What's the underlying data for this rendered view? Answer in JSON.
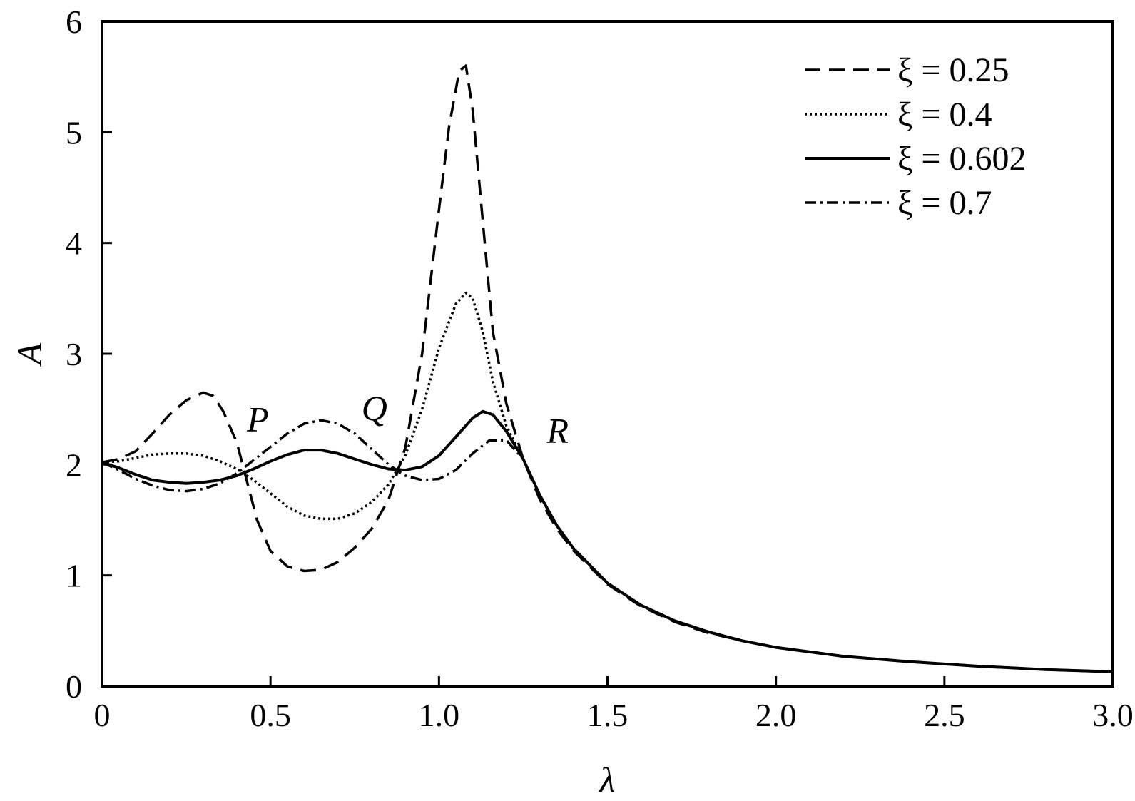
{
  "chart_data": {
    "type": "line",
    "xlabel": "λ",
    "ylabel": "A",
    "xlim": [
      0,
      3.0
    ],
    "ylim": [
      0,
      6
    ],
    "xticks": [
      {
        "value": 0,
        "label": "0"
      },
      {
        "value": 0.5,
        "label": "0.5"
      },
      {
        "value": 1.0,
        "label": "1.0"
      },
      {
        "value": 1.5,
        "label": "1.5"
      },
      {
        "value": 2.0,
        "label": "2.0"
      },
      {
        "value": 2.5,
        "label": "2.5"
      },
      {
        "value": 3.0,
        "label": "3.0"
      }
    ],
    "yticks": [
      {
        "value": 0,
        "label": "0"
      },
      {
        "value": 1,
        "label": "1"
      },
      {
        "value": 2,
        "label": "2"
      },
      {
        "value": 3,
        "label": "3"
      },
      {
        "value": 4,
        "label": "4"
      },
      {
        "value": 5,
        "label": "5"
      },
      {
        "value": 6,
        "label": "6"
      }
    ],
    "grid": false,
    "legend_position": "top-right",
    "annotations": [
      {
        "text": "P",
        "x": 0.43,
        "y": 2.3
      },
      {
        "text": "Q",
        "x": 0.77,
        "y": 2.4
      },
      {
        "text": "R",
        "x": 1.32,
        "y": 2.2
      }
    ],
    "series": [
      {
        "name": "ξ = 0.25",
        "style": "dashed",
        "color": "#000000",
        "x": [
          0,
          0.05,
          0.1,
          0.15,
          0.2,
          0.25,
          0.3,
          0.33,
          0.36,
          0.4,
          0.43,
          0.46,
          0.5,
          0.55,
          0.6,
          0.65,
          0.7,
          0.75,
          0.8,
          0.85,
          0.9,
          0.95,
          1.0,
          1.03,
          1.06,
          1.08,
          1.1,
          1.13,
          1.16,
          1.2,
          1.25,
          1.3,
          1.35,
          1.4,
          1.5,
          1.6,
          1.7,
          1.8,
          1.9,
          2.0,
          2.2,
          2.4,
          2.6,
          2.8,
          3.0
        ],
        "y": [
          2.02,
          2.05,
          2.12,
          2.28,
          2.45,
          2.58,
          2.65,
          2.62,
          2.48,
          2.2,
          1.85,
          1.5,
          1.22,
          1.08,
          1.04,
          1.05,
          1.12,
          1.25,
          1.42,
          1.68,
          2.15,
          3.0,
          4.3,
          5.05,
          5.55,
          5.6,
          5.2,
          4.2,
          3.2,
          2.55,
          2.05,
          1.68,
          1.42,
          1.22,
          0.92,
          0.72,
          0.58,
          0.48,
          0.41,
          0.35,
          0.27,
          0.22,
          0.18,
          0.15,
          0.13
        ]
      },
      {
        "name": "ξ = 0.4",
        "style": "dotted",
        "color": "#000000",
        "x": [
          0,
          0.05,
          0.1,
          0.15,
          0.2,
          0.25,
          0.3,
          0.35,
          0.4,
          0.45,
          0.5,
          0.55,
          0.6,
          0.65,
          0.7,
          0.75,
          0.8,
          0.85,
          0.9,
          0.95,
          1.0,
          1.05,
          1.08,
          1.1,
          1.13,
          1.16,
          1.2,
          1.25,
          1.3,
          1.35,
          1.4,
          1.5,
          1.6,
          1.7,
          1.8,
          1.9,
          2.0,
          2.2,
          2.4,
          2.6,
          2.8,
          3.0
        ],
        "y": [
          2.02,
          2.03,
          2.06,
          2.09,
          2.1,
          2.1,
          2.08,
          2.03,
          1.96,
          1.86,
          1.74,
          1.62,
          1.54,
          1.51,
          1.51,
          1.56,
          1.66,
          1.82,
          2.08,
          2.5,
          3.05,
          3.45,
          3.55,
          3.5,
          3.2,
          2.75,
          2.35,
          2.05,
          1.72,
          1.45,
          1.24,
          0.93,
          0.73,
          0.59,
          0.49,
          0.41,
          0.35,
          0.27,
          0.22,
          0.18,
          0.15,
          0.13
        ]
      },
      {
        "name": "ξ = 0.602",
        "style": "solid",
        "color": "#000000",
        "x": [
          0,
          0.05,
          0.1,
          0.15,
          0.2,
          0.25,
          0.3,
          0.35,
          0.4,
          0.45,
          0.5,
          0.55,
          0.6,
          0.65,
          0.7,
          0.75,
          0.8,
          0.85,
          0.9,
          0.95,
          1.0,
          1.05,
          1.1,
          1.13,
          1.16,
          1.2,
          1.25,
          1.3,
          1.35,
          1.4,
          1.5,
          1.6,
          1.7,
          1.8,
          1.9,
          2.0,
          2.2,
          2.4,
          2.6,
          2.8,
          3.0
        ],
        "y": [
          2.02,
          1.97,
          1.91,
          1.86,
          1.84,
          1.83,
          1.84,
          1.86,
          1.9,
          1.96,
          2.03,
          2.09,
          2.13,
          2.13,
          2.1,
          2.05,
          2.0,
          1.96,
          1.95,
          1.98,
          2.08,
          2.25,
          2.42,
          2.48,
          2.45,
          2.3,
          2.05,
          1.72,
          1.45,
          1.24,
          0.93,
          0.73,
          0.59,
          0.49,
          0.41,
          0.35,
          0.27,
          0.22,
          0.18,
          0.15,
          0.13
        ]
      },
      {
        "name": "ξ = 0.7",
        "style": "dash-dot",
        "color": "#000000",
        "x": [
          0,
          0.05,
          0.1,
          0.15,
          0.2,
          0.25,
          0.3,
          0.35,
          0.4,
          0.45,
          0.5,
          0.55,
          0.6,
          0.65,
          0.7,
          0.75,
          0.8,
          0.85,
          0.9,
          0.95,
          1.0,
          1.05,
          1.1,
          1.15,
          1.2,
          1.25,
          1.3,
          1.35,
          1.4,
          1.5,
          1.6,
          1.7,
          1.8,
          1.9,
          2.0,
          2.2,
          2.4,
          2.6,
          2.8,
          3.0
        ],
        "y": [
          2.02,
          1.95,
          1.87,
          1.81,
          1.77,
          1.76,
          1.78,
          1.83,
          1.92,
          2.04,
          2.16,
          2.28,
          2.37,
          2.4,
          2.37,
          2.28,
          2.14,
          2.0,
          1.9,
          1.86,
          1.87,
          1.95,
          2.1,
          2.22,
          2.22,
          2.05,
          1.72,
          1.45,
          1.24,
          0.93,
          0.73,
          0.59,
          0.49,
          0.41,
          0.35,
          0.27,
          0.22,
          0.18,
          0.15,
          0.13
        ]
      }
    ]
  }
}
